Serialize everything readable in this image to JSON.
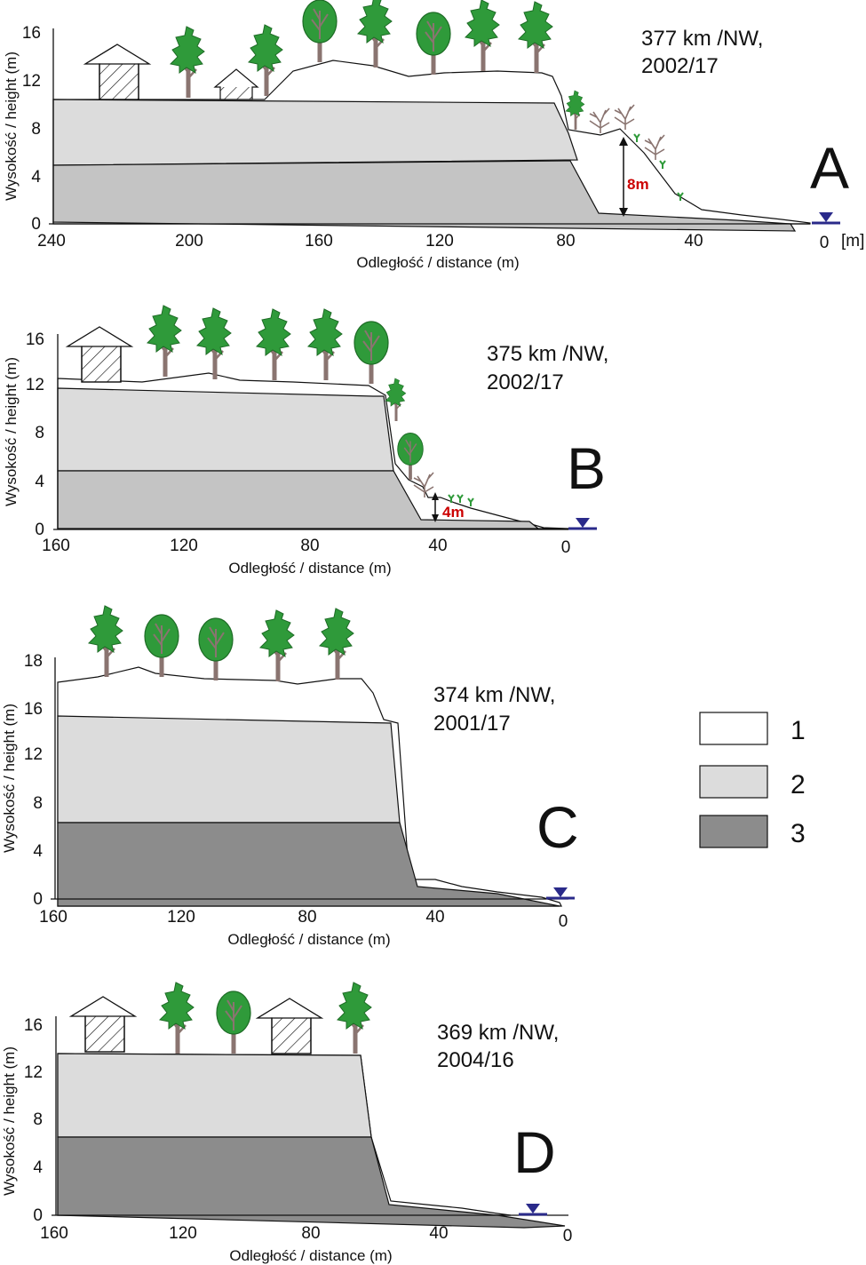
{
  "panels": [
    {
      "letter": "A",
      "location": "377 km /NW,",
      "date": "2002/17",
      "x_ticks": [
        "240",
        "200",
        "160",
        "120",
        "80",
        "40",
        "0"
      ],
      "x_unit": "[m]",
      "y_ticks": [
        "0",
        "4",
        "8",
        "12",
        "16"
      ],
      "xlabel": "Odległość / distance (m)",
      "ylabel": "Wysokość / height (m)",
      "height_label": "8m"
    },
    {
      "letter": "B",
      "location": "375 km /NW,",
      "date": "2002/17",
      "x_ticks": [
        "160",
        "120",
        "80",
        "40",
        "0"
      ],
      "y_ticks": [
        "0",
        "4",
        "8",
        "12",
        "16"
      ],
      "xlabel": "Odległość / distance (m)",
      "ylabel": "Wysokość / height (m)",
      "height_label": "4m"
    },
    {
      "letter": "C",
      "location": "374 km /NW,",
      "date": "2001/17",
      "x_ticks": [
        "160",
        "120",
        "80",
        "40",
        "0"
      ],
      "y_ticks": [
        "0",
        "4",
        "8",
        "12",
        "16",
        "18"
      ],
      "xlabel": "Odległość / distance (m)",
      "ylabel": "Wysokość / height (m)"
    },
    {
      "letter": "D",
      "location": "369 km /NW,",
      "date": "2004/16",
      "x_ticks": [
        "160",
        "120",
        "80",
        "40",
        "0"
      ],
      "y_ticks": [
        "0",
        "4",
        "8",
        "12",
        "16"
      ],
      "xlabel": "Odległość / distance (m)",
      "ylabel": "Wysokość / height (m)"
    }
  ],
  "legend": [
    {
      "label": "1",
      "color": "#ffffff"
    },
    {
      "label": "2",
      "color": "#dcdcdc"
    },
    {
      "label": "3",
      "color": "#8c8c8c"
    }
  ],
  "colors": {
    "layer_top": "#ffffff",
    "layer_mid": "#dcdcdc",
    "layer_low": "#c4c4c4",
    "layer_dark": "#8c8c8c",
    "water": "#2a2a8a",
    "tree": "#2f9a3a",
    "trunk": "#8a7470",
    "accent": "#cc0000"
  }
}
